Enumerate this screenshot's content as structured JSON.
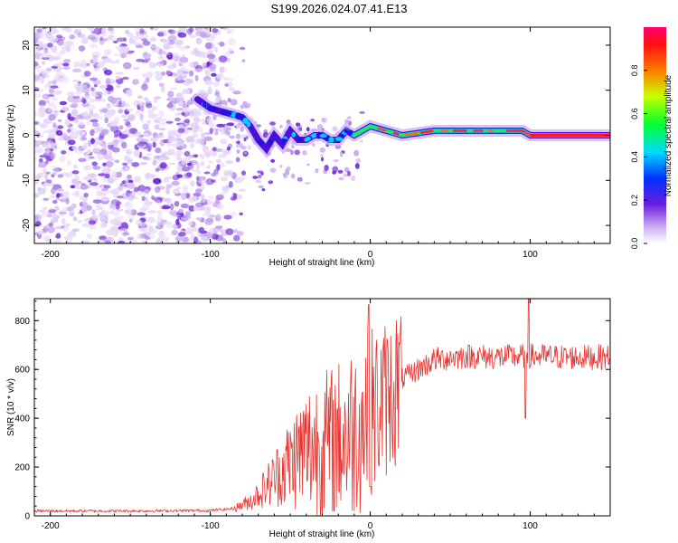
{
  "title": "S199.2026.024.07.41.E13",
  "chart_data": [
    {
      "type": "heatmap",
      "xlabel": "Height of straight line (km)",
      "ylabel": "Frequency (Hz)",
      "xlim": [
        -210,
        150
      ],
      "ylim": [
        -24,
        24
      ],
      "xticks": [
        -200,
        -100,
        0,
        100
      ],
      "yticks": [
        -20,
        -10,
        0,
        10,
        20
      ],
      "colorbar": {
        "label": "Normalized spectral amplitude",
        "range": [
          0,
          1
        ],
        "ticks": [
          "0.0",
          "0.2",
          "0.4",
          "0.6",
          "0.8"
        ]
      },
      "ridge_x": [
        -108,
        -100,
        -90,
        -80,
        -75,
        -70,
        -65,
        -60,
        -55,
        -50,
        -45,
        -40,
        -35,
        -30,
        -25,
        -20,
        -15,
        -10,
        -5,
        0,
        10,
        20,
        40,
        60,
        80,
        95,
        100,
        150
      ],
      "ridge_y": [
        8,
        6,
        5,
        4,
        2,
        -1,
        -3,
        0,
        -2,
        1,
        -1,
        -1,
        0,
        0,
        -1,
        -1,
        1,
        0,
        1,
        2,
        1,
        0,
        1,
        1,
        1,
        1,
        0,
        0
      ]
    },
    {
      "type": "line",
      "xlabel": "Height of straight line (km)",
      "ylabel": "SNR (10 * v/v)",
      "xlim": [
        -210,
        150
      ],
      "ylim": [
        0,
        890
      ],
      "xticks": [
        -200,
        -100,
        0,
        100
      ],
      "yticks": [
        0,
        200,
        400,
        600,
        800
      ],
      "color": "#e8332f",
      "trend_x": [
        -210,
        -150,
        -100,
        -85,
        -75,
        -65,
        -55,
        -45,
        -35,
        -25,
        -15,
        -5,
        0,
        10,
        20,
        30,
        40,
        60,
        80,
        100,
        120,
        150
      ],
      "trend_y": [
        20,
        20,
        22,
        30,
        60,
        120,
        190,
        250,
        290,
        300,
        330,
        380,
        420,
        480,
        560,
        600,
        640,
        655,
        650,
        655,
        650,
        650
      ],
      "spikes": [
        {
          "x": -1,
          "y": 865
        },
        {
          "x": 0,
          "y": 120
        },
        {
          "x": 99,
          "y": 890
        },
        {
          "x": 97,
          "y": 400
        }
      ]
    }
  ]
}
